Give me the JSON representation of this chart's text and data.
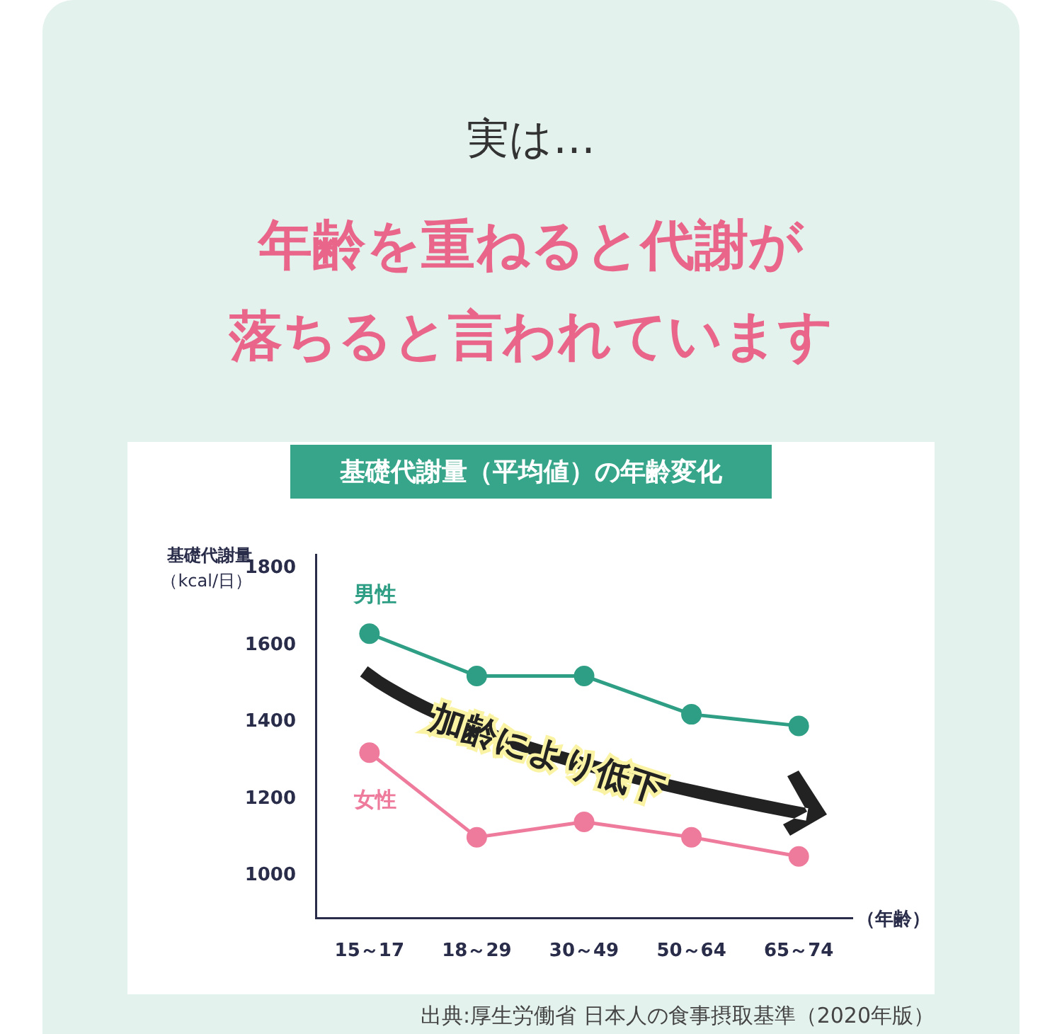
{
  "chart_data": {
    "type": "line",
    "title": "基礎代謝量（平均値）の年齢変化",
    "ylabel": "基礎代謝量（kcal/日）",
    "xlabel": "（年齢）",
    "categories": [
      "15～17",
      "18～29",
      "30～49",
      "50～64",
      "65～74"
    ],
    "series": [
      {
        "name": "男性",
        "color": "#2e9e85",
        "values": [
          1630,
          1520,
          1520,
          1420,
          1390
        ]
      },
      {
        "name": "女性",
        "color": "#ee7b9c",
        "values": [
          1320,
          1100,
          1140,
          1100,
          1050
        ]
      }
    ],
    "ylim": [
      890,
      1835
    ],
    "yticks": [
      1000,
      1200,
      1400,
      1600,
      1800
    ],
    "grid": false,
    "legend": false,
    "marker": "circle",
    "line_style": "solid",
    "annotations": [
      "実は…",
      "年齢を重ねると代謝が",
      "落ちると言われています",
      "加齢により低下",
      "出典:厚生労働省 日本人の食事摂取基準（2020年版）"
    ]
  }
}
